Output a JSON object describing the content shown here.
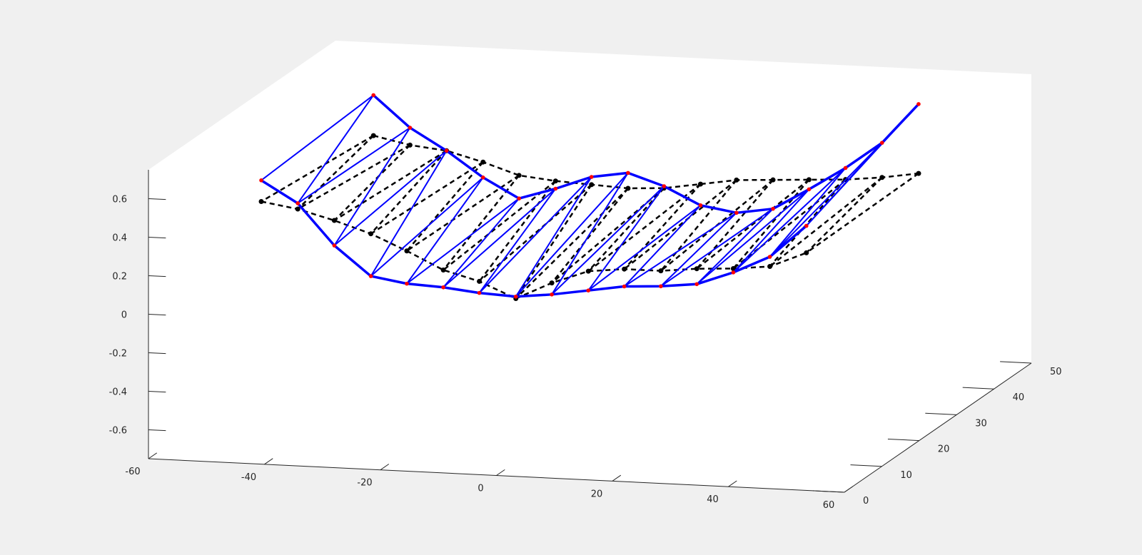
{
  "window": {
    "background": "#f0f0f0"
  },
  "chart_data": {
    "type": "line",
    "view": "3d",
    "grid": false,
    "legend": "none",
    "title": "",
    "xlabel": "",
    "ylabel": "",
    "zlabel": "",
    "xlim": [
      -60,
      60
    ],
    "ylim": [
      0,
      50
    ],
    "zlim": [
      -0.75,
      0.75
    ],
    "x_ticks": [
      "-60",
      "-40",
      "-20",
      "0",
      "20",
      "40",
      "60"
    ],
    "y_ticks": [
      "0",
      "10",
      "20",
      "30",
      "40",
      "50"
    ],
    "z_ticks": [
      "-0.6",
      "-0.4",
      "-0.2",
      "0",
      "0.2",
      "0.4",
      "0.6"
    ],
    "colors": {
      "deformed": "#0000ff",
      "node_marker": "#ff0000",
      "undeformed": "#000000",
      "axes": "#262626",
      "plot_background": "#ffffff"
    },
    "series": [
      {
        "style": "solid-thick",
        "color": "#0000ff",
        "x": [
          -47.0,
          -40.7,
          -34.4,
          -28.1,
          -21.9,
          -15.6,
          -9.4,
          -3.1,
          3.1,
          9.4,
          15.6,
          21.9,
          28.1,
          34.4,
          40.7,
          47.0
        ],
        "y": [
          40,
          40,
          40,
          40,
          40,
          40,
          40,
          40,
          40,
          40,
          40,
          40,
          40,
          40,
          40,
          40
        ],
        "z": [
          0.62,
          0.46,
          0.35,
          0.22,
          0.12,
          0.18,
          0.25,
          0.28,
          0.22,
          0.13,
          0.1,
          0.13,
          0.24,
          0.36,
          0.5,
          0.71
        ]
      },
      {
        "style": "solid-thick",
        "color": "#0000ff",
        "x": [
          -47.0,
          -40.7,
          -34.4,
          -28.1,
          -21.9,
          -15.6,
          -9.4,
          -3.1,
          3.1,
          9.4,
          15.6,
          21.9,
          28.1,
          34.4,
          40.7,
          47.0
        ],
        "y": [
          10,
          10,
          10,
          10,
          10,
          10,
          10,
          10,
          10,
          10,
          10,
          10,
          10,
          10,
          10,
          10
        ],
        "z": [
          0.58,
          0.47,
          0.26,
          0.11,
          0.08,
          0.07,
          0.05,
          0.04,
          0.06,
          0.09,
          0.12,
          0.13,
          0.15,
          0.22,
          0.31,
          0.48
        ]
      },
      {
        "style": "dashed",
        "color": "#000000",
        "x": [
          -47.0,
          -40.7,
          -34.4,
          -28.1,
          -21.9,
          -15.6,
          -9.4,
          -3.1,
          3.1,
          9.4,
          15.6,
          21.9,
          28.1,
          34.4,
          40.7,
          47.0
        ],
        "y": [
          40,
          40,
          40,
          40,
          40,
          40,
          40,
          40,
          40,
          40,
          40,
          40,
          40,
          40,
          40,
          40
        ],
        "z": [
          0.41,
          0.37,
          0.35,
          0.3,
          0.24,
          0.22,
          0.21,
          0.2,
          0.21,
          0.24,
          0.27,
          0.28,
          0.29,
          0.3,
          0.32,
          0.35
        ]
      },
      {
        "style": "dashed",
        "color": "#000000",
        "x": [
          -47.0,
          -40.7,
          -34.4,
          -28.1,
          -21.9,
          -15.6,
          -9.4,
          -3.1,
          3.1,
          9.4,
          15.6,
          21.9,
          28.1,
          34.4,
          40.7,
          47.0
        ],
        "y": [
          10,
          10,
          10,
          10,
          10,
          10,
          10,
          10,
          10,
          10,
          10,
          10,
          10,
          10,
          10,
          10
        ],
        "z": [
          0.47,
          0.44,
          0.39,
          0.33,
          0.25,
          0.16,
          0.11,
          0.03,
          0.12,
          0.19,
          0.21,
          0.21,
          0.23,
          0.24,
          0.26,
          0.34
        ]
      }
    ]
  }
}
